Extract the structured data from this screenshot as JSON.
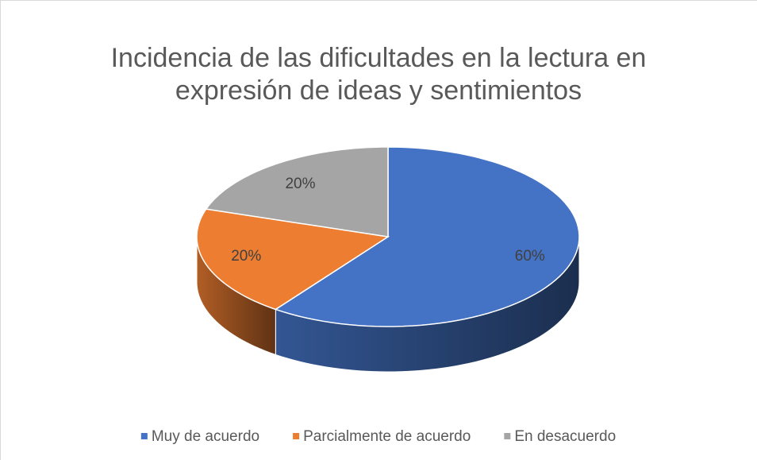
{
  "chart_data": {
    "type": "pie3d",
    "title": "Incidencia de las dificultades en la lectura en expresión de ideas y sentimientos",
    "categories": [
      "Muy de acuerdo",
      "Parcialmente de acuerdo",
      "En desacuerdo"
    ],
    "values": [
      60,
      20,
      20
    ],
    "value_labels": [
      "60%",
      "20%",
      "20%"
    ],
    "colors": [
      "#4472c4",
      "#ed7d31",
      "#a5a5a5"
    ],
    "legend": "bottom"
  }
}
